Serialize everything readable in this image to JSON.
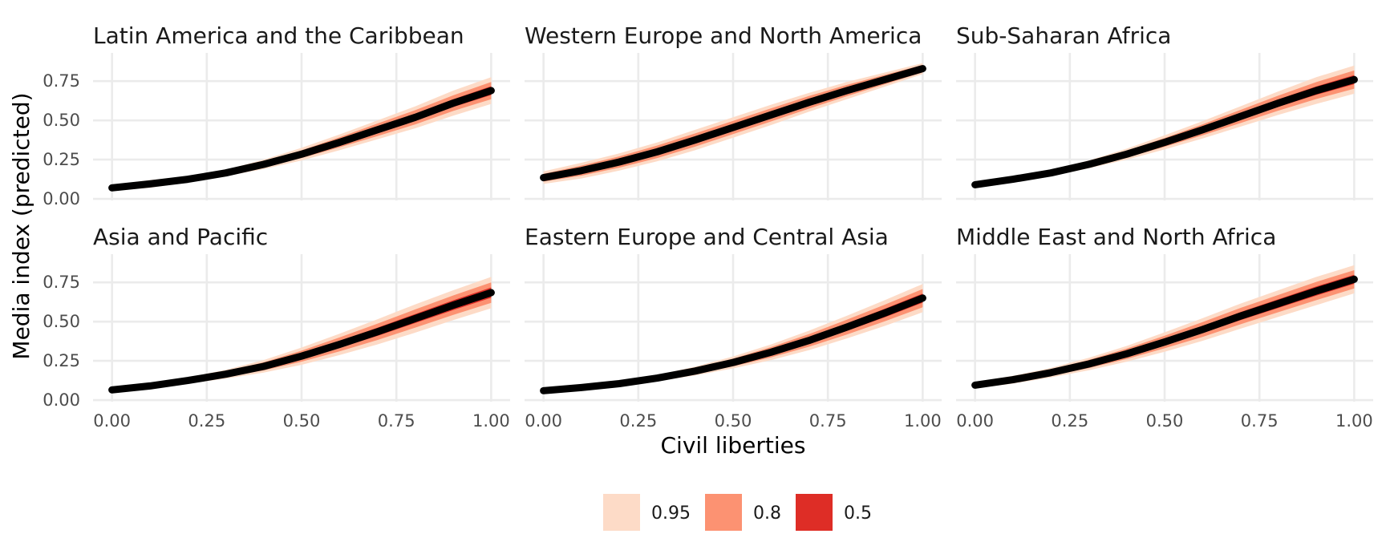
{
  "chart_data": {
    "type": "line",
    "xlabel": "Civil liberties",
    "ylabel": "Media index (predicted)",
    "xlim": [
      -0.05,
      1.05
    ],
    "ylim": [
      -0.01,
      0.93
    ],
    "x_ticks": [
      "0.00",
      "0.25",
      "0.50",
      "0.75",
      "1.00"
    ],
    "y_ticks": [
      "0.00",
      "0.25",
      "0.50",
      "0.75"
    ],
    "x_tick_values": [
      0,
      0.25,
      0.5,
      0.75,
      1.0
    ],
    "y_tick_values": [
      0,
      0.25,
      0.5,
      0.75
    ],
    "grid": true,
    "legend": {
      "placement": "bottom",
      "items": [
        {
          "label": "0.95",
          "color": "#fddbc7"
        },
        {
          "label": "0.8",
          "color": "#fc9272"
        },
        {
          "label": "0.5",
          "color": "#de2d26"
        }
      ]
    },
    "line_color": "#000000",
    "x": [
      0,
      0.1,
      0.2,
      0.3,
      0.4,
      0.5,
      0.6,
      0.7,
      0.8,
      0.9,
      1.0
    ],
    "panels": [
      {
        "title": "Latin America and the Caribbean",
        "median": [
          0.07,
          0.095,
          0.125,
          0.165,
          0.22,
          0.285,
          0.36,
          0.44,
          0.52,
          0.61,
          0.69
        ],
        "band95": [
          0.02,
          0.025,
          0.02,
          0.02,
          0.03,
          0.04,
          0.05,
          0.06,
          0.07,
          0.08,
          0.085
        ],
        "band80": [
          0.012,
          0.014,
          0.012,
          0.012,
          0.018,
          0.025,
          0.032,
          0.04,
          0.045,
          0.05,
          0.055
        ],
        "band50": [
          0.006,
          0.007,
          0.006,
          0.006,
          0.009,
          0.012,
          0.016,
          0.02,
          0.022,
          0.025,
          0.028
        ]
      },
      {
        "title": "Western Europe and North America",
        "median": [
          0.135,
          0.18,
          0.235,
          0.3,
          0.375,
          0.455,
          0.535,
          0.615,
          0.69,
          0.76,
          0.83
        ],
        "band95": [
          0.04,
          0.05,
          0.055,
          0.06,
          0.065,
          0.065,
          0.065,
          0.06,
          0.055,
          0.045,
          0.035
        ],
        "band80": [
          0.025,
          0.032,
          0.036,
          0.04,
          0.042,
          0.042,
          0.042,
          0.04,
          0.036,
          0.03,
          0.024
        ],
        "band50": [
          0.012,
          0.016,
          0.018,
          0.02,
          0.021,
          0.021,
          0.021,
          0.02,
          0.018,
          0.015,
          0.012
        ]
      },
      {
        "title": "Sub-Saharan Africa",
        "median": [
          0.09,
          0.125,
          0.165,
          0.22,
          0.285,
          0.36,
          0.44,
          0.525,
          0.61,
          0.69,
          0.76
        ],
        "band95": [
          0.015,
          0.018,
          0.02,
          0.025,
          0.035,
          0.045,
          0.055,
          0.065,
          0.075,
          0.085,
          0.09
        ],
        "band80": [
          0.01,
          0.012,
          0.013,
          0.016,
          0.022,
          0.028,
          0.035,
          0.042,
          0.048,
          0.054,
          0.058
        ],
        "band50": [
          0.005,
          0.006,
          0.007,
          0.008,
          0.011,
          0.014,
          0.018,
          0.021,
          0.024,
          0.027,
          0.029
        ]
      },
      {
        "title": "Asia and Pacific",
        "median": [
          0.065,
          0.09,
          0.125,
          0.165,
          0.215,
          0.28,
          0.355,
          0.435,
          0.52,
          0.605,
          0.685
        ],
        "band95": [
          0.012,
          0.015,
          0.02,
          0.028,
          0.04,
          0.055,
          0.068,
          0.08,
          0.09,
          0.095,
          0.1
        ],
        "band80": [
          0.008,
          0.01,
          0.013,
          0.018,
          0.026,
          0.035,
          0.044,
          0.052,
          0.058,
          0.062,
          0.065
        ],
        "band50": [
          0.004,
          0.005,
          0.007,
          0.009,
          0.013,
          0.018,
          0.022,
          0.026,
          0.029,
          0.031,
          0.033
        ]
      },
      {
        "title": "Eastern Europe and Central Asia",
        "median": [
          0.06,
          0.08,
          0.105,
          0.14,
          0.185,
          0.24,
          0.305,
          0.38,
          0.465,
          0.555,
          0.65
        ],
        "band95": [
          0.01,
          0.012,
          0.015,
          0.02,
          0.028,
          0.038,
          0.05,
          0.062,
          0.072,
          0.082,
          0.09
        ],
        "band80": [
          0.007,
          0.008,
          0.01,
          0.013,
          0.018,
          0.025,
          0.033,
          0.04,
          0.047,
          0.053,
          0.058
        ],
        "band50": [
          0.004,
          0.004,
          0.005,
          0.007,
          0.009,
          0.013,
          0.017,
          0.02,
          0.024,
          0.027,
          0.029
        ]
      },
      {
        "title": "Middle East and North Africa",
        "median": [
          0.095,
          0.13,
          0.175,
          0.23,
          0.295,
          0.37,
          0.45,
          0.535,
          0.615,
          0.695,
          0.77
        ],
        "band95": [
          0.02,
          0.025,
          0.03,
          0.04,
          0.05,
          0.062,
          0.072,
          0.08,
          0.085,
          0.09,
          0.09
        ],
        "band80": [
          0.013,
          0.016,
          0.02,
          0.026,
          0.033,
          0.04,
          0.047,
          0.052,
          0.055,
          0.058,
          0.058
        ],
        "band50": [
          0.007,
          0.008,
          0.01,
          0.013,
          0.016,
          0.02,
          0.023,
          0.026,
          0.028,
          0.029,
          0.029
        ]
      }
    ]
  }
}
